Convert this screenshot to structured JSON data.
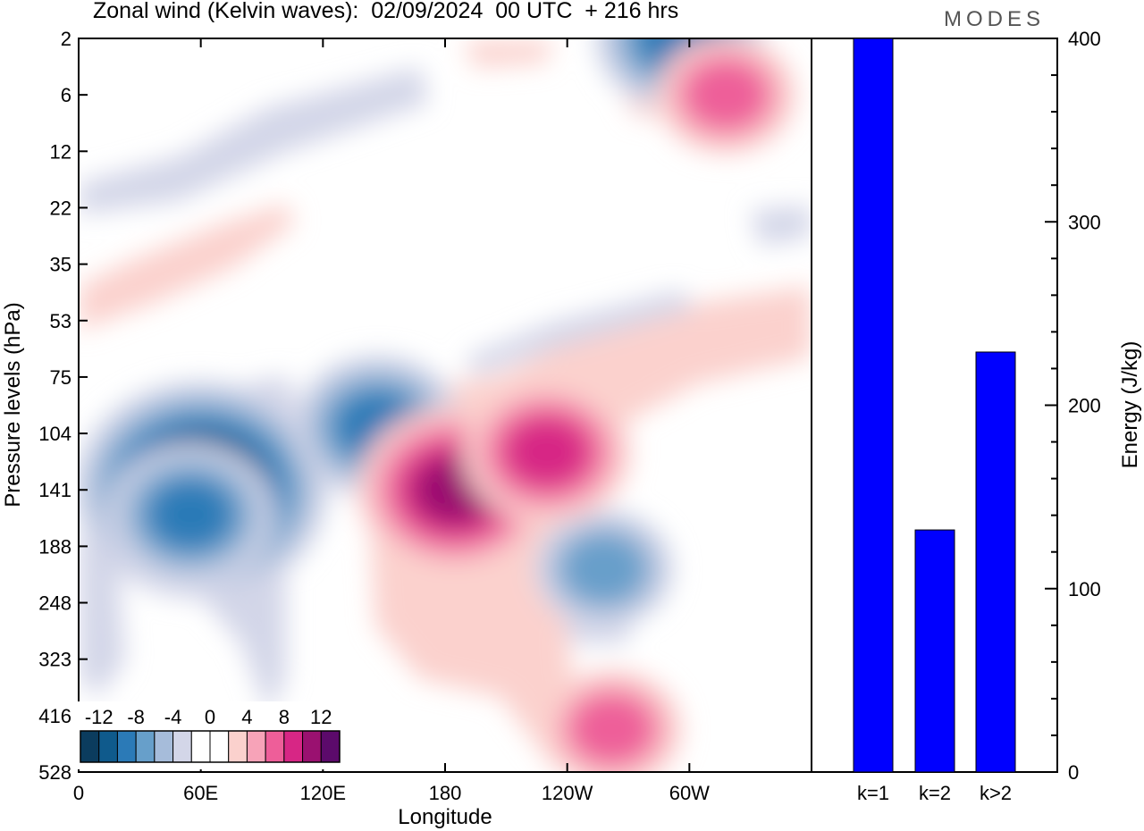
{
  "header": {
    "title": "Zonal wind (Kelvin waves):  02/09/2024  00 UTC  + 216 hrs",
    "brand": "MODES"
  },
  "chart_data": [
    {
      "type": "heatmap",
      "title": "Zonal wind (Kelvin waves):  02/09/2024  00 UTC  + 216 hrs",
      "xlabel": "Longitude",
      "ylabel": "Pressure levels (hPa)",
      "x_ticks": [
        "0",
        "60E",
        "120E",
        "180",
        "120W",
        "60W"
      ],
      "x_tick_lon": [
        0,
        60,
        120,
        180,
        240,
        300
      ],
      "xlim": [
        0,
        360
      ],
      "y_ticks": [
        "2",
        "6",
        "12",
        "22",
        "35",
        "53",
        "75",
        "104",
        "141",
        "188",
        "248",
        "323",
        "416",
        "528"
      ],
      "y_tick_hpa": [
        2,
        6,
        12,
        22,
        35,
        53,
        75,
        104,
        141,
        188,
        248,
        323,
        416,
        528
      ],
      "colorbar": {
        "labels": [
          "-12",
          "-8",
          "-4",
          "0",
          "4",
          "8",
          "12"
        ],
        "colors": [
          "#0b3c5e",
          "#0f5a8c",
          "#2b7ab7",
          "#679fca",
          "#a6bcda",
          "#d3d6e8",
          "#ffffff",
          "#ffffff",
          "#fbd1cd",
          "#f7a3b8",
          "#ee5e99",
          "#d72685",
          "#9a1170",
          "#5c0a6b"
        ]
      },
      "features": [
        {
          "lon": 60,
          "hpa": 141,
          "value": -14
        },
        {
          "lon": 55,
          "hpa": 160,
          "value": -8
        },
        {
          "lon": 147,
          "hpa": 100,
          "value": -8
        },
        {
          "lon": 258,
          "hpa": 210,
          "value": -6
        },
        {
          "lon": 295,
          "hpa": 2,
          "value": -8
        },
        {
          "lon": 185,
          "hpa": 141,
          "value": 10
        },
        {
          "lon": 230,
          "hpa": 115,
          "value": 8
        },
        {
          "lon": 262,
          "hpa": 440,
          "value": 6
        },
        {
          "lon": 318,
          "hpa": 6,
          "value": 6
        }
      ]
    },
    {
      "type": "bar",
      "categories": [
        "k=1",
        "k=2",
        "k>2"
      ],
      "values": [
        400,
        132,
        229
      ],
      "ylabel": "Energy (J/kg)",
      "ylim": [
        0,
        400
      ],
      "y_ticks": [
        0,
        100,
        200,
        300,
        400
      ],
      "bar_color": "#0000ff"
    }
  ]
}
